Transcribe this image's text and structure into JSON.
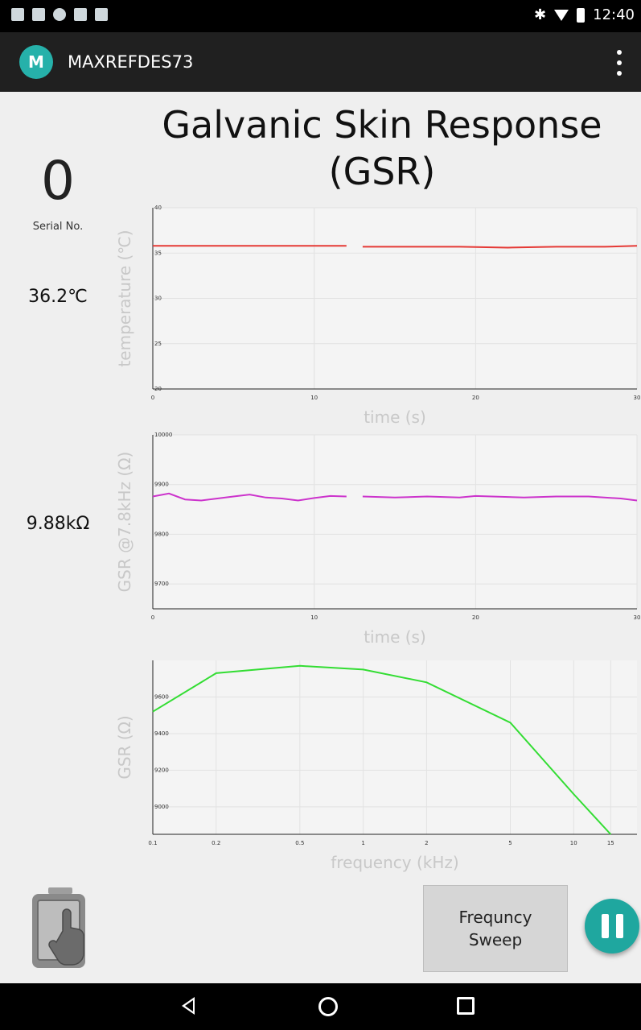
{
  "status_bar": {
    "time": "12:40",
    "icons": [
      "image-icon",
      "mail-icon",
      "wifi-off-icon",
      "briefcase-icon",
      "briefcase-icon",
      "bluetooth-icon",
      "wifi-icon",
      "battery-icon"
    ]
  },
  "app_bar": {
    "logo_text": "M",
    "title": "MAXREFDES73",
    "menu_icon": "overflow-menu-icon"
  },
  "main": {
    "title": "Galvanic Skin Response (GSR)",
    "serial_value": "0",
    "serial_label": "Serial No.",
    "temperature": "36.2℃",
    "gsr": "9.88kΩ",
    "sweep_label": "Frequncy\nSweep"
  },
  "nav_bar": {
    "icons": [
      "back-icon",
      "home-icon",
      "recents-icon"
    ]
  },
  "chart_data": [
    {
      "type": "line",
      "xlabel": "time (s)",
      "ylabel": "temperature (℃)",
      "xlim": [
        0,
        30
      ],
      "ylim": [
        20,
        40
      ],
      "x_ticks": [
        "0",
        "10",
        "20",
        "30"
      ],
      "y_ticks": [
        "20",
        "25",
        "30",
        "35",
        "40"
      ],
      "color": "#e53935",
      "segments": [
        {
          "x": [
            0,
            2,
            4,
            6,
            8,
            10,
            12
          ],
          "y": [
            35.8,
            35.8,
            35.8,
            35.8,
            35.8,
            35.8,
            35.8
          ]
        },
        {
          "x": [
            13,
            16,
            19,
            22,
            25,
            28,
            30
          ],
          "y": [
            35.7,
            35.7,
            35.7,
            35.6,
            35.7,
            35.7,
            35.8
          ]
        }
      ]
    },
    {
      "type": "line",
      "xlabel": "time (s)",
      "ylabel": "GSR @7.8kHz (Ω)",
      "xlim": [
        0,
        30
      ],
      "ylim": [
        9650,
        10000
      ],
      "x_ticks": [
        "0",
        "10",
        "20",
        "30"
      ],
      "y_ticks": [
        "9700",
        "9800",
        "9900",
        "10000"
      ],
      "color": "#cc33cc",
      "segments": [
        {
          "x": [
            0,
            1,
            2,
            3,
            4,
            5,
            6,
            7,
            8,
            9,
            10,
            11,
            12
          ],
          "y": [
            9876,
            9882,
            9870,
            9868,
            9872,
            9876,
            9880,
            9874,
            9872,
            9868,
            9873,
            9877,
            9876
          ]
        },
        {
          "x": [
            13,
            15,
            17,
            19,
            20,
            21,
            23,
            25,
            27,
            29,
            30
          ],
          "y": [
            9876,
            9874,
            9876,
            9874,
            9877,
            9876,
            9874,
            9876,
            9876,
            9872,
            9868
          ]
        }
      ]
    },
    {
      "type": "line",
      "xlabel": "frequency (kHz)",
      "ylabel": "GSR (Ω)",
      "xscale": "log",
      "xlim": [
        0.1,
        20
      ],
      "ylim": [
        8850,
        9800
      ],
      "x_ticks": [
        "0.1",
        "0.2",
        "0.5",
        "1",
        "2",
        "5",
        "10",
        "15"
      ],
      "y_ticks": [
        "9000",
        "9200",
        "9400",
        "9600"
      ],
      "color": "#33dd33",
      "x": [
        0.1,
        0.2,
        0.5,
        1,
        2,
        5,
        10,
        15
      ],
      "y": [
        9520,
        9730,
        9770,
        9750,
        9680,
        9460,
        9070,
        8850
      ]
    }
  ]
}
